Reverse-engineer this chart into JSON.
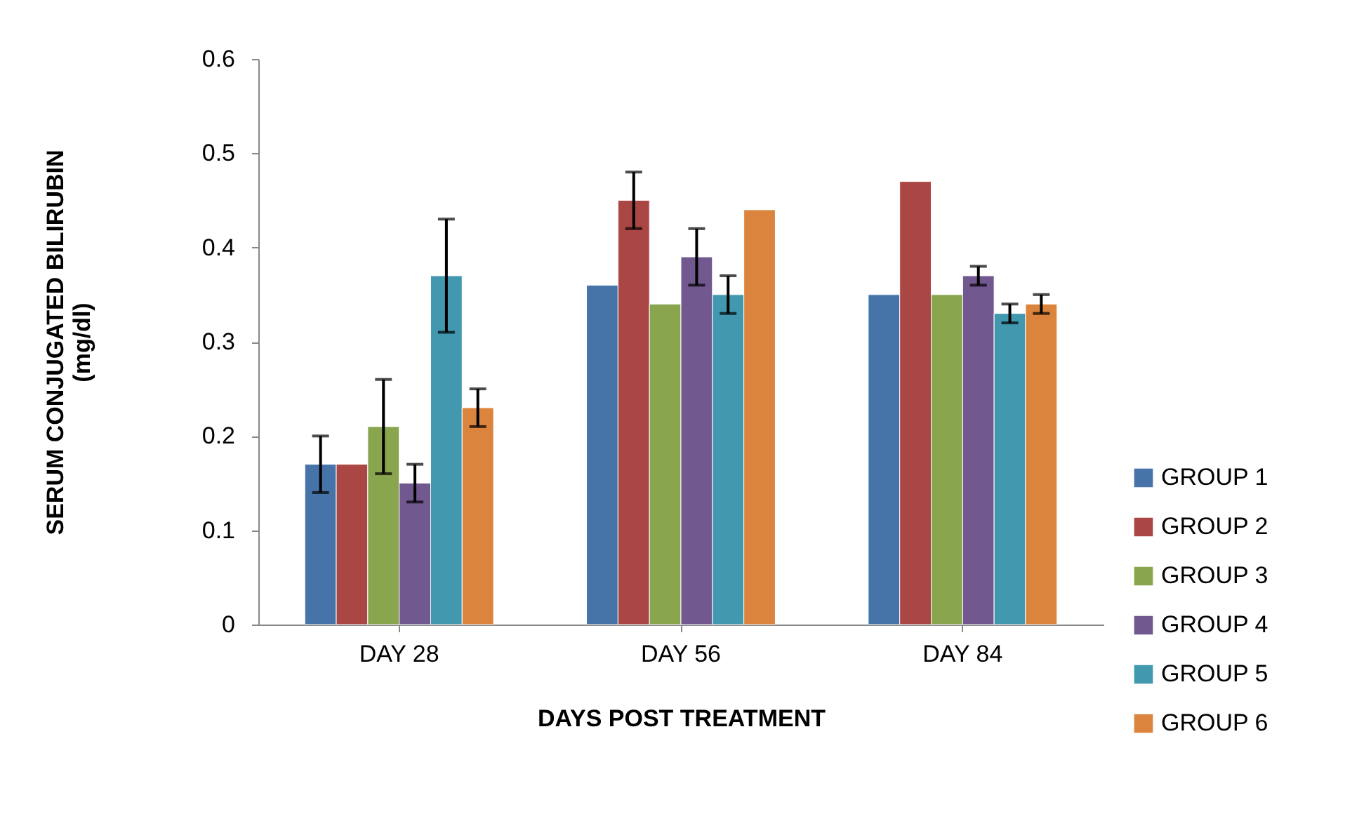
{
  "chart_data": {
    "type": "bar",
    "xlabel": "DAYS POST TREATMENT",
    "ylabel": "SERUM CONJUGATED BILIRUBIN (mg/dl)",
    "categories": [
      "DAY 28",
      "DAY 56",
      "DAY 84"
    ],
    "series": [
      {
        "name": "GROUP 1",
        "color": "#4673a8",
        "values": [
          0.17,
          0.36,
          0.35
        ],
        "errors": [
          0.03,
          null,
          null
        ]
      },
      {
        "name": "GROUP 2",
        "color": "#aa4644",
        "values": [
          0.17,
          0.45,
          0.47
        ],
        "errors": [
          null,
          0.03,
          null
        ]
      },
      {
        "name": "GROUP 3",
        "color": "#89a54e",
        "values": [
          0.21,
          0.34,
          0.35
        ],
        "errors": [
          0.05,
          null,
          null
        ]
      },
      {
        "name": "GROUP 4",
        "color": "#71588f",
        "values": [
          0.15,
          0.39,
          0.37
        ],
        "errors": [
          0.02,
          0.03,
          0.01
        ]
      },
      {
        "name": "GROUP 5",
        "color": "#4298af",
        "values": [
          0.37,
          0.35,
          0.33
        ],
        "errors": [
          0.06,
          0.02,
          0.01
        ]
      },
      {
        "name": "GROUP 6",
        "color": "#db843d",
        "values": [
          0.23,
          0.44,
          0.34
        ],
        "errors": [
          0.02,
          null,
          0.01
        ]
      }
    ],
    "ylim": [
      0,
      0.6
    ],
    "yticks": [
      0,
      0.1,
      0.2,
      0.3,
      0.4,
      0.5,
      0.6
    ],
    "grid": false,
    "legend": "right"
  }
}
